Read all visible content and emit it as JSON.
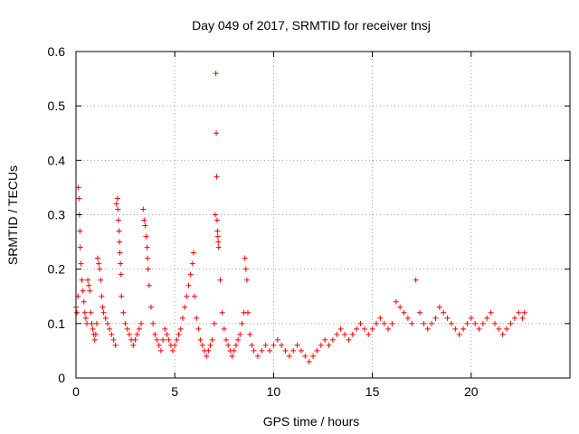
{
  "chart_data": {
    "type": "scatter",
    "title": "Day 049 of 2017, SRMTID for receiver tnsj",
    "xlabel": "GPS time / hours",
    "ylabel": "SRMTID / TECUs",
    "xlim": [
      0,
      25
    ],
    "ylim": [
      0,
      0.6
    ],
    "xticks": [
      0,
      5,
      10,
      15,
      20
    ],
    "xtick_labels": [
      "0",
      "5",
      "10",
      "15",
      "20"
    ],
    "yticks": [
      0,
      0.1,
      0.2,
      0.3,
      0.4,
      0.5,
      0.6
    ],
    "ytick_labels": [
      "0",
      "0.1",
      "0.2",
      "0.3",
      "0.4",
      "0.5",
      "0.6"
    ],
    "grid": true,
    "marker": "+",
    "color": "#ff0000",
    "series": [
      {
        "name": "SRMTID",
        "points": [
          [
            0.0,
            0.13
          ],
          [
            0.05,
            0.12
          ],
          [
            0.1,
            0.15
          ],
          [
            0.12,
            0.35
          ],
          [
            0.15,
            0.33
          ],
          [
            0.18,
            0.3
          ],
          [
            0.2,
            0.27
          ],
          [
            0.22,
            0.24
          ],
          [
            0.25,
            0.21
          ],
          [
            0.3,
            0.18
          ],
          [
            0.35,
            0.16
          ],
          [
            0.4,
            0.14
          ],
          [
            0.45,
            0.12
          ],
          [
            0.5,
            0.11
          ],
          [
            0.55,
            0.1
          ],
          [
            0.6,
            0.18
          ],
          [
            0.65,
            0.17
          ],
          [
            0.7,
            0.16
          ],
          [
            0.75,
            0.12
          ],
          [
            0.8,
            0.1
          ],
          [
            0.85,
            0.09
          ],
          [
            0.9,
            0.08
          ],
          [
            0.95,
            0.07
          ],
          [
            1.0,
            0.08
          ],
          [
            1.05,
            0.1
          ],
          [
            1.1,
            0.22
          ],
          [
            1.15,
            0.21
          ],
          [
            1.2,
            0.2
          ],
          [
            1.25,
            0.18
          ],
          [
            1.3,
            0.15
          ],
          [
            1.35,
            0.13
          ],
          [
            1.4,
            0.12
          ],
          [
            1.5,
            0.11
          ],
          [
            1.6,
            0.1
          ],
          [
            1.7,
            0.09
          ],
          [
            1.8,
            0.08
          ],
          [
            1.9,
            0.07
          ],
          [
            2.0,
            0.06
          ],
          [
            2.05,
            0.32
          ],
          [
            2.1,
            0.33
          ],
          [
            2.12,
            0.31
          ],
          [
            2.15,
            0.29
          ],
          [
            2.18,
            0.27
          ],
          [
            2.2,
            0.25
          ],
          [
            2.22,
            0.23
          ],
          [
            2.25,
            0.21
          ],
          [
            2.28,
            0.19
          ],
          [
            2.3,
            0.15
          ],
          [
            2.4,
            0.12
          ],
          [
            2.5,
            0.1
          ],
          [
            2.6,
            0.09
          ],
          [
            2.7,
            0.08
          ],
          [
            2.8,
            0.07
          ],
          [
            2.9,
            0.06
          ],
          [
            3.0,
            0.07
          ],
          [
            3.1,
            0.08
          ],
          [
            3.2,
            0.09
          ],
          [
            3.3,
            0.1
          ],
          [
            3.4,
            0.31
          ],
          [
            3.45,
            0.29
          ],
          [
            3.5,
            0.28
          ],
          [
            3.55,
            0.26
          ],
          [
            3.6,
            0.24
          ],
          [
            3.62,
            0.22
          ],
          [
            3.65,
            0.2
          ],
          [
            3.7,
            0.17
          ],
          [
            3.8,
            0.13
          ],
          [
            3.9,
            0.1
          ],
          [
            4.0,
            0.08
          ],
          [
            4.1,
            0.07
          ],
          [
            4.2,
            0.06
          ],
          [
            4.3,
            0.05
          ],
          [
            4.4,
            0.07
          ],
          [
            4.5,
            0.09
          ],
          [
            4.6,
            0.08
          ],
          [
            4.7,
            0.07
          ],
          [
            4.8,
            0.06
          ],
          [
            4.9,
            0.05
          ],
          [
            5.0,
            0.06
          ],
          [
            5.1,
            0.07
          ],
          [
            5.2,
            0.08
          ],
          [
            5.3,
            0.09
          ],
          [
            5.4,
            0.11
          ],
          [
            5.5,
            0.13
          ],
          [
            5.6,
            0.15
          ],
          [
            5.7,
            0.17
          ],
          [
            5.8,
            0.19
          ],
          [
            5.9,
            0.21
          ],
          [
            5.95,
            0.23
          ],
          [
            6.0,
            0.15
          ],
          [
            6.1,
            0.11
          ],
          [
            6.2,
            0.09
          ],
          [
            6.3,
            0.07
          ],
          [
            6.4,
            0.06
          ],
          [
            6.5,
            0.05
          ],
          [
            6.6,
            0.04
          ],
          [
            6.7,
            0.05
          ],
          [
            6.8,
            0.06
          ],
          [
            6.9,
            0.07
          ],
          [
            7.0,
            0.1
          ],
          [
            7.05,
            0.3
          ],
          [
            7.08,
            0.56
          ],
          [
            7.1,
            0.45
          ],
          [
            7.12,
            0.37
          ],
          [
            7.14,
            0.29
          ],
          [
            7.16,
            0.27
          ],
          [
            7.18,
            0.26
          ],
          [
            7.2,
            0.25
          ],
          [
            7.22,
            0.24
          ],
          [
            7.3,
            0.18
          ],
          [
            7.4,
            0.12
          ],
          [
            7.5,
            0.09
          ],
          [
            7.6,
            0.07
          ],
          [
            7.7,
            0.06
          ],
          [
            7.8,
            0.05
          ],
          [
            7.9,
            0.04
          ],
          [
            8.0,
            0.05
          ],
          [
            8.1,
            0.06
          ],
          [
            8.2,
            0.07
          ],
          [
            8.3,
            0.08
          ],
          [
            8.4,
            0.1
          ],
          [
            8.5,
            0.12
          ],
          [
            8.55,
            0.22
          ],
          [
            8.6,
            0.2
          ],
          [
            8.65,
            0.18
          ],
          [
            8.7,
            0.12
          ],
          [
            8.8,
            0.08
          ],
          [
            8.9,
            0.06
          ],
          [
            9.0,
            0.05
          ],
          [
            9.2,
            0.04
          ],
          [
            9.4,
            0.05
          ],
          [
            9.6,
            0.06
          ],
          [
            9.8,
            0.05
          ],
          [
            10.0,
            0.06
          ],
          [
            10.2,
            0.07
          ],
          [
            10.4,
            0.06
          ],
          [
            10.6,
            0.05
          ],
          [
            10.8,
            0.04
          ],
          [
            11.0,
            0.05
          ],
          [
            11.2,
            0.06
          ],
          [
            11.4,
            0.05
          ],
          [
            11.6,
            0.04
          ],
          [
            11.8,
            0.03
          ],
          [
            12.0,
            0.04
          ],
          [
            12.2,
            0.05
          ],
          [
            12.4,
            0.06
          ],
          [
            12.6,
            0.07
          ],
          [
            12.8,
            0.06
          ],
          [
            13.0,
            0.07
          ],
          [
            13.2,
            0.08
          ],
          [
            13.4,
            0.09
          ],
          [
            13.6,
            0.08
          ],
          [
            13.8,
            0.07
          ],
          [
            14.0,
            0.08
          ],
          [
            14.2,
            0.09
          ],
          [
            14.4,
            0.1
          ],
          [
            14.6,
            0.09
          ],
          [
            14.8,
            0.08
          ],
          [
            15.0,
            0.09
          ],
          [
            15.2,
            0.1
          ],
          [
            15.4,
            0.11
          ],
          [
            15.6,
            0.1
          ],
          [
            15.8,
            0.09
          ],
          [
            16.0,
            0.1
          ],
          [
            16.2,
            0.14
          ],
          [
            16.4,
            0.13
          ],
          [
            16.6,
            0.12
          ],
          [
            16.8,
            0.11
          ],
          [
            17.0,
            0.1
          ],
          [
            17.2,
            0.18
          ],
          [
            17.4,
            0.12
          ],
          [
            17.6,
            0.1
          ],
          [
            17.8,
            0.09
          ],
          [
            18.0,
            0.1
          ],
          [
            18.2,
            0.11
          ],
          [
            18.4,
            0.13
          ],
          [
            18.6,
            0.12
          ],
          [
            18.8,
            0.11
          ],
          [
            19.0,
            0.1
          ],
          [
            19.2,
            0.09
          ],
          [
            19.4,
            0.08
          ],
          [
            19.6,
            0.09
          ],
          [
            19.8,
            0.1
          ],
          [
            20.0,
            0.11
          ],
          [
            20.2,
            0.1
          ],
          [
            20.4,
            0.09
          ],
          [
            20.6,
            0.1
          ],
          [
            20.8,
            0.11
          ],
          [
            21.0,
            0.12
          ],
          [
            21.2,
            0.1
          ],
          [
            21.4,
            0.09
          ],
          [
            21.6,
            0.08
          ],
          [
            21.8,
            0.09
          ],
          [
            22.0,
            0.1
          ],
          [
            22.2,
            0.11
          ],
          [
            22.4,
            0.12
          ],
          [
            22.6,
            0.11
          ],
          [
            22.7,
            0.12
          ]
        ]
      }
    ]
  }
}
